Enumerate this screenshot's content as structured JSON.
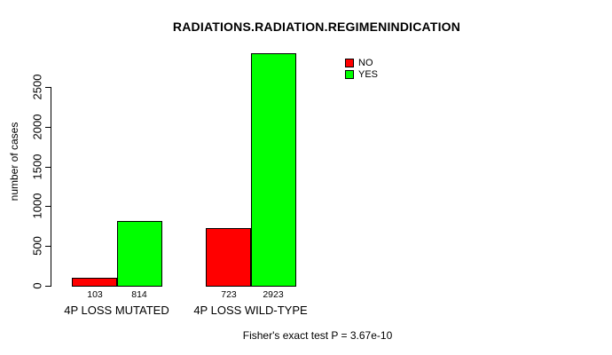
{
  "chart_data": {
    "type": "bar",
    "title": "RADIATIONS.RADIATION.REGIMENINDICATION",
    "ylabel": "number of cases",
    "xlabel": "",
    "categories": [
      "4P LOSS MUTATED",
      "4P LOSS WILD-TYPE"
    ],
    "series": [
      {
        "name": "NO",
        "color": "#FF0000",
        "values": [
          103,
          723
        ]
      },
      {
        "name": "YES",
        "color": "#00FF00",
        "values": [
          814,
          2923
        ]
      }
    ],
    "yticks": [
      0,
      500,
      1000,
      1500,
      2000,
      2500
    ],
    "ylim": [
      0,
      2923
    ],
    "grid": false,
    "legend_position": "inside-upper-middle",
    "annotation": "Fisher's exact test P = 3.67e-10"
  },
  "colors": {
    "background": "#FFFFFF",
    "text": "#000000",
    "bar_no": "#FF0000",
    "bar_yes": "#00FF00"
  }
}
